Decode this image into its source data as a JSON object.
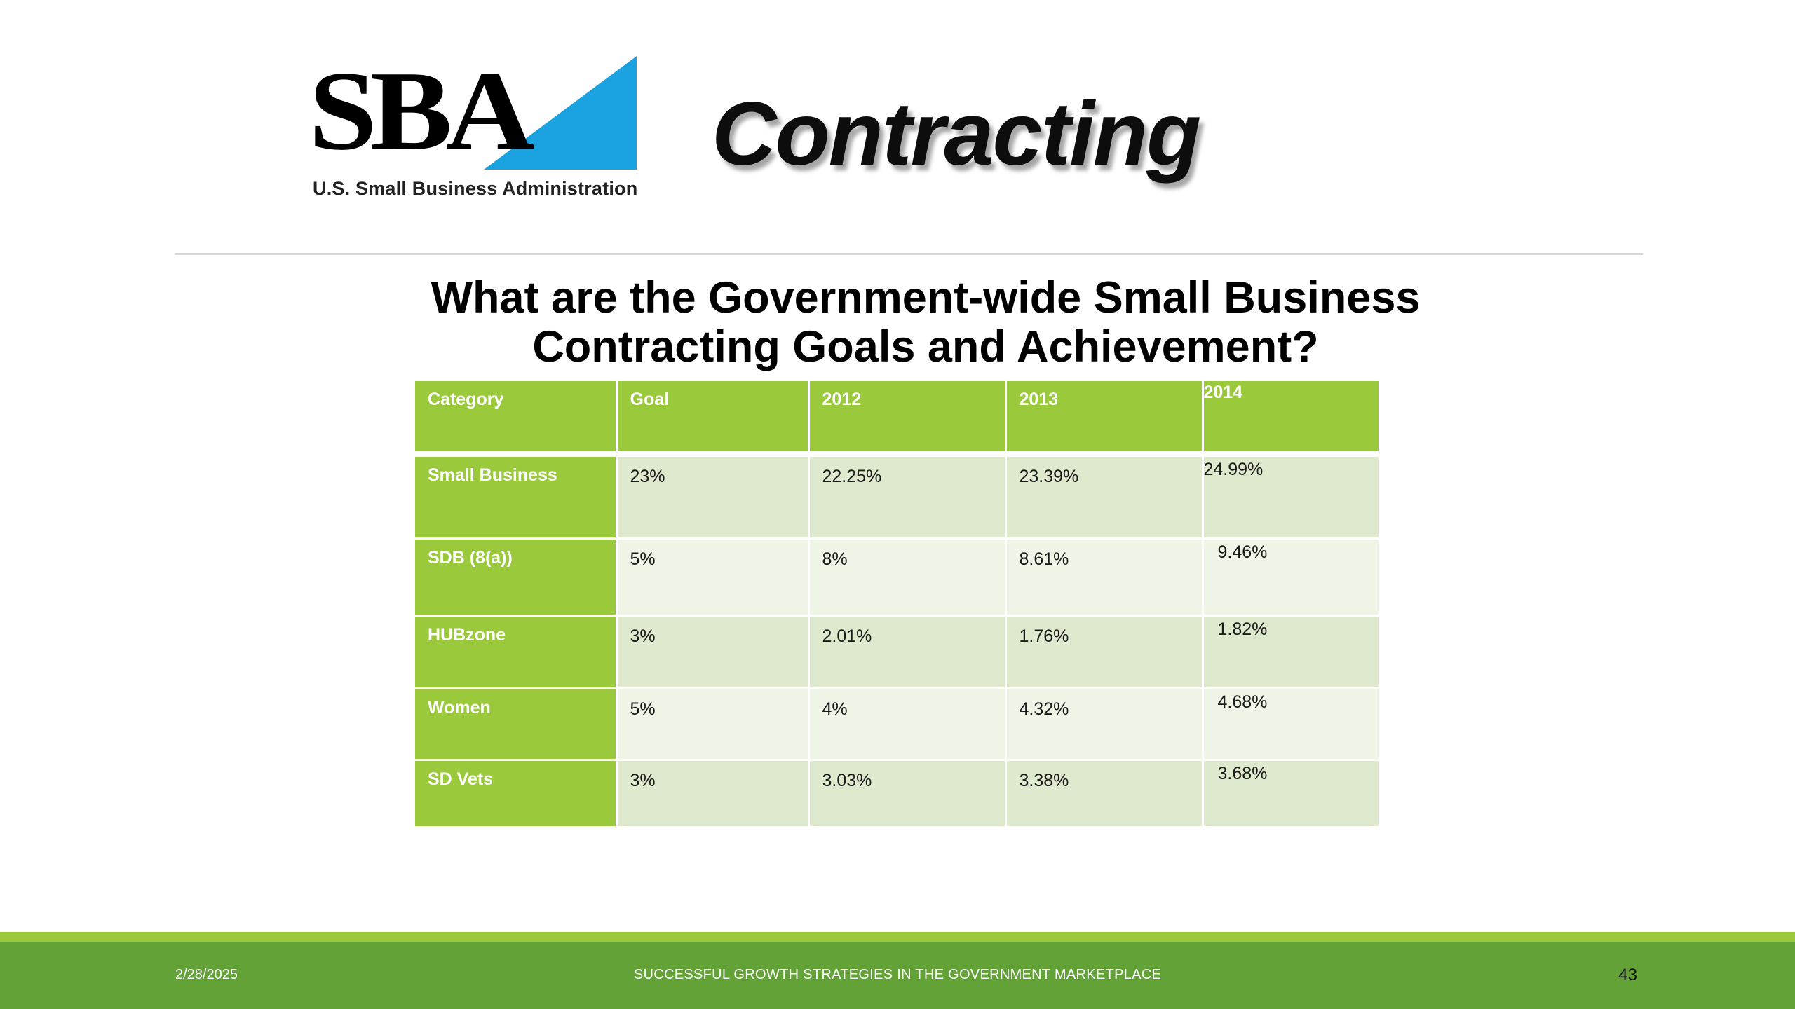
{
  "header": {
    "logo_text": "SBA",
    "logo_subtitle": "U.S. Small Business Administration",
    "title": "Contracting",
    "accent_color": "#1aa3e0"
  },
  "slide": {
    "question_line1": "What are the Government-wide Small Business",
    "question_line2": "Contracting Goals and Achievement?"
  },
  "table": {
    "headers": [
      "Category",
      "Goal",
      "2012",
      "2013",
      "2014"
    ],
    "rows": [
      {
        "category": "Small Business",
        "goal": "23%",
        "y2012": "22.25%",
        "y2013": "23.39%",
        "y2014": "24.99%"
      },
      {
        "category": "SDB (8(a))",
        "goal": "5%",
        "y2012": "8%",
        "y2013": "8.61%",
        "y2014": "9.46%"
      },
      {
        "category": "HUBzone",
        "goal": "3%",
        "y2012": "2.01%",
        "y2013": "1.76%",
        "y2014": "1.82%"
      },
      {
        "category": "Women",
        "goal": "5%",
        "y2012": "4%",
        "y2013": "4.32%",
        "y2014": "4.68%"
      },
      {
        "category": "SD Vets",
        "goal": "3%",
        "y2012": "3.03%",
        "y2013": "3.38%",
        "y2014": "3.68%"
      }
    ],
    "header_color": "#9ac93c",
    "row_color_odd": "#dfe9ce",
    "row_color_even": "#eef5e6"
  },
  "footer": {
    "date": "2/28/2025",
    "center_text": "SUCCESSFUL GROWTH STRATEGIES IN THE GOVERNMENT MARKETPLACE",
    "page_number": "43",
    "bar_color": "#62a237"
  }
}
